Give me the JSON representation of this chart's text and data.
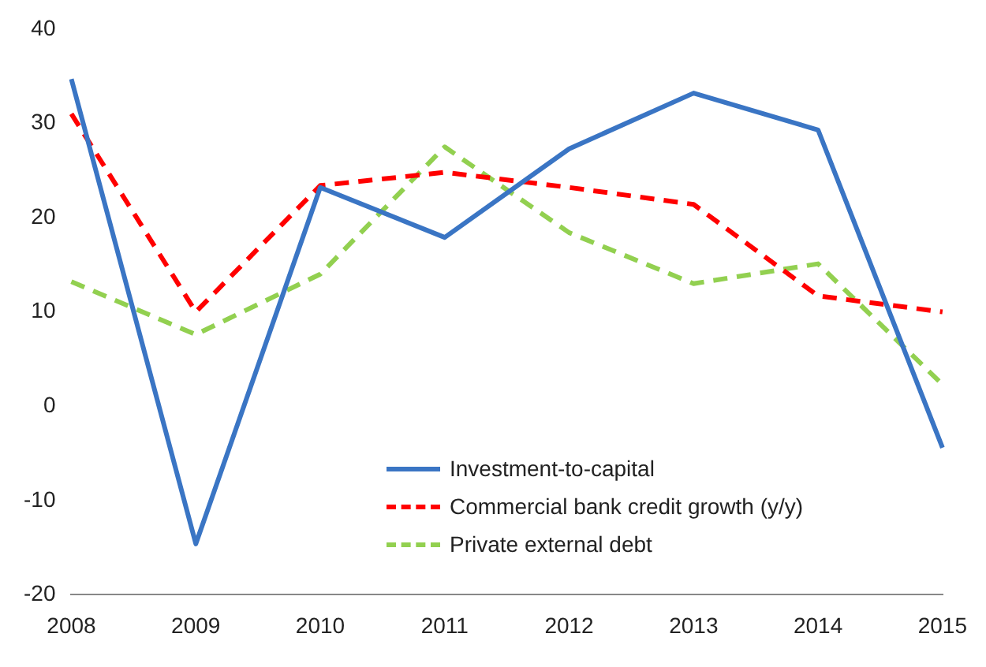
{
  "chart_data": {
    "type": "line",
    "categories": [
      "2008",
      "2009",
      "2010",
      "2011",
      "2012",
      "2013",
      "2014",
      "2015"
    ],
    "series": [
      {
        "name": "Investment-to-capital",
        "color": "#3a75c4",
        "line_style": "solid",
        "values": [
          34.7,
          -14.6,
          23.2,
          17.9,
          27.3,
          33.2,
          29.3,
          -4.4
        ]
      },
      {
        "name": "Commercial bank credit growth (y/y)",
        "color": "#ff0000",
        "line_style": "dashed",
        "values": [
          31,
          10,
          23.4,
          24.8,
          23.2,
          21.4,
          11.7,
          10
        ]
      },
      {
        "name": "Private external debt",
        "color": "#92d050",
        "line_style": "dashed",
        "values": [
          13.2,
          7.6,
          14,
          27.5,
          18.4,
          13,
          15.1,
          2.3
        ]
      }
    ],
    "ylim": [
      -20,
      40
    ],
    "yticks": [
      -20,
      -10,
      0,
      10,
      20,
      30,
      40
    ],
    "grid": false,
    "legend": "bottom",
    "marker": "none"
  }
}
